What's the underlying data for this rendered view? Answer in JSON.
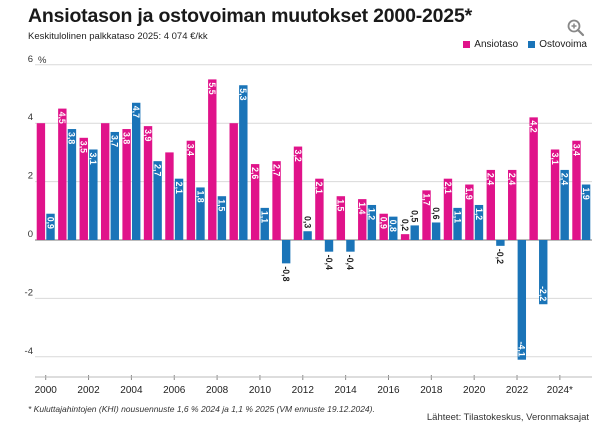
{
  "header": {
    "title": "Ansiotason ja ostovoiman muutokset 2000-2025*",
    "subtitle": "Keskitulolinen palkkataso 2025: 4 074 €/kk",
    "zoom_icon": "magnifier-zoom-icon"
  },
  "colors": {
    "ansiotaso": "#e0138a",
    "ostovoima": "#1a74b8"
  },
  "chart_data": {
    "type": "bar",
    "title": "Ansiotason ja ostovoiman muutokset 2000-2025*",
    "subtitle": "Keskitulolinen palkkataso 2025: 4 074 €/kk",
    "ylabel": "%",
    "ylim": [
      -4.9,
      6
    ],
    "yticks": [
      -4,
      -2,
      0,
      2,
      4,
      6
    ],
    "grid": true,
    "legend_position": "top-right",
    "categories": [
      "2000",
      "2001",
      "2002",
      "2003",
      "2004",
      "2005",
      "2006",
      "2007",
      "2008",
      "2009",
      "2010",
      "2011",
      "2012",
      "2013",
      "2014",
      "2015",
      "2016",
      "2017",
      "2018",
      "2019",
      "2020",
      "2021",
      "2022",
      "2023",
      "2024",
      "2025"
    ],
    "xtick_labels": [
      "2000",
      "2002",
      "2004",
      "2006",
      "2008",
      "2010",
      "2012",
      "2014",
      "2016",
      "2018",
      "2020",
      "2022",
      "2024*"
    ],
    "series": [
      {
        "name": "Ansiotaso",
        "values": [
          4.0,
          4.5,
          3.5,
          4.0,
          3.8,
          3.9,
          3.0,
          3.4,
          5.5,
          4.0,
          2.6,
          2.7,
          3.2,
          2.1,
          1.5,
          1.4,
          0.9,
          0.2,
          1.7,
          2.1,
          1.9,
          2.4,
          2.4,
          4.2,
          3.1,
          3.4
        ],
        "labels": [
          "",
          "4,5",
          "3,5",
          "",
          "3,8",
          "3,9",
          "",
          "3,4",
          "5,5",
          "",
          "2,6",
          "2,7",
          "3,2",
          "2,1",
          "1,5",
          "1,4",
          "0,9",
          "0,2",
          "1,7",
          "2,1",
          "1,9",
          "2,4",
          "2,4",
          "4,2",
          "3,1",
          "3,4"
        ]
      },
      {
        "name": "Ostovoima",
        "values": [
          0.9,
          3.8,
          3.1,
          3.7,
          4.7,
          2.7,
          2.1,
          1.8,
          1.5,
          5.3,
          1.1,
          -0.8,
          0.3,
          -0.4,
          -0.4,
          1.2,
          0.8,
          0.5,
          0.6,
          1.1,
          1.2,
          -0.2,
          -4.1,
          -2.2,
          2.4,
          1.9
        ],
        "labels": [
          "0,9",
          "3,8",
          "3,1",
          "3,7",
          "4,7",
          "2,7",
          "2,1",
          "1,8",
          "1,5",
          "5,3",
          "1,1",
          "-0,8",
          "0,3",
          "-0,4",
          "-0,4",
          "1,2",
          "0,8",
          "0,5",
          "0,6",
          "1,1",
          "1,2",
          "-0,2",
          "-4,1",
          "-2,2",
          "2,4",
          "1,9"
        ]
      }
    ]
  },
  "footer": {
    "footnote": "* Kuluttajahintojen (KHI) nousuennuste 1,6 % 2024 ja 1,1 % 2025 (VM ennuste 19.12.2024).",
    "sources": "Lähteet: Tilastokeskus, Veronmaksajat"
  }
}
